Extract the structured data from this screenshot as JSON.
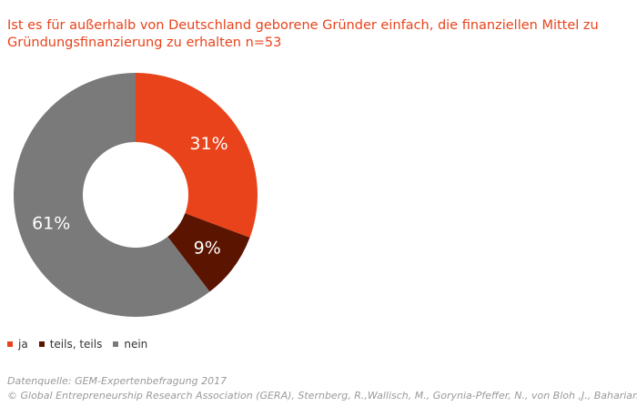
{
  "title": "Ist es für außerhalb von Deutschland geborene Gründer einfach, die finanziellen Mittel zu Gründungsfinanzierung zu erhalten n=53",
  "chart_data": {
    "type": "pie",
    "donut": true,
    "categories": [
      "ja",
      "teils, teils",
      "nein"
    ],
    "values": [
      31,
      9,
      61
    ],
    "labels": [
      "31%",
      "9%",
      "61%"
    ],
    "colors": [
      "#e8431b",
      "#5a1400",
      "#7a7a7a"
    ],
    "legend_position": "bottom-left"
  },
  "source": {
    "line1": "Datenquelle: GEM-Expertenbefragung 2017",
    "line2": "© Global Entrepreneurship Research Association (GERA), Sternberg, R.,Wallisch, M., Gorynia-Pfeffer, N., von Bloh ,J., Baharian, A."
  }
}
